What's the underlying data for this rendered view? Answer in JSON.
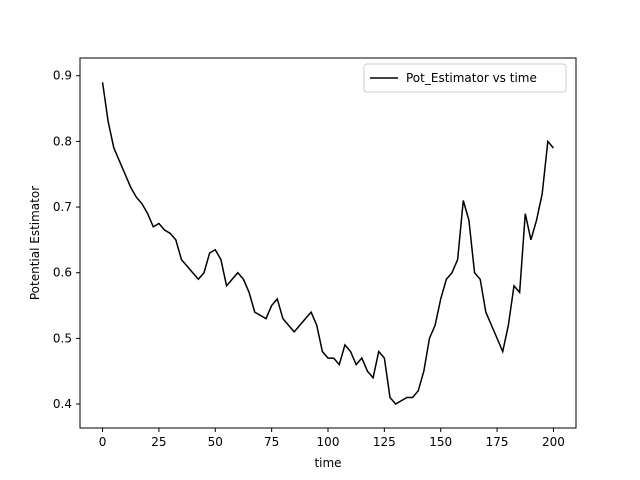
{
  "chart_data": {
    "type": "line",
    "x_label": "time",
    "y_label": "Potential Estimator",
    "x": [
      0,
      2.5,
      5,
      7.5,
      10,
      12.5,
      15,
      17.5,
      20,
      22.5,
      25,
      27.5,
      30,
      32.5,
      35,
      37.5,
      40,
      42.5,
      45,
      47.5,
      50,
      52.5,
      55,
      57.5,
      60,
      62.5,
      65,
      67.5,
      70,
      72.5,
      75,
      77.5,
      80,
      82.5,
      85,
      87.5,
      90,
      92.5,
      95,
      97.5,
      100,
      102.5,
      105,
      107.5,
      110,
      112.5,
      115,
      117.5,
      120,
      122.5,
      125,
      127.5,
      130,
      132.5,
      135,
      137.5,
      140,
      142.5,
      145,
      147.5,
      150,
      152.5,
      155,
      157.5,
      160,
      162.5,
      165,
      167.5,
      170,
      172.5,
      175,
      177.5,
      180,
      182.5,
      185,
      187.5,
      190,
      192.5,
      195,
      197.5,
      200
    ],
    "series": [
      {
        "name": "Pot_Estimator vs time",
        "color": "#000000",
        "values": [
          0.89,
          0.83,
          0.79,
          0.77,
          0.75,
          0.73,
          0.715,
          0.705,
          0.69,
          0.67,
          0.675,
          0.665,
          0.66,
          0.65,
          0.62,
          0.61,
          0.6,
          0.59,
          0.6,
          0.63,
          0.635,
          0.62,
          0.58,
          0.59,
          0.6,
          0.59,
          0.57,
          0.54,
          0.535,
          0.53,
          0.55,
          0.56,
          0.53,
          0.52,
          0.51,
          0.52,
          0.53,
          0.54,
          0.52,
          0.48,
          0.47,
          0.47,
          0.46,
          0.49,
          0.48,
          0.46,
          0.47,
          0.45,
          0.44,
          0.48,
          0.47,
          0.41,
          0.4,
          0.405,
          0.41,
          0.41,
          0.42,
          0.45,
          0.5,
          0.52,
          0.56,
          0.59,
          0.6,
          0.62,
          0.71,
          0.68,
          0.6,
          0.59,
          0.54,
          0.52,
          0.5,
          0.48,
          0.52,
          0.58,
          0.57,
          0.69,
          0.65,
          0.68,
          0.72,
          0.8,
          0.79
        ]
      }
    ],
    "xlim": [
      -10,
      210
    ],
    "xticks": [
      0,
      25,
      50,
      75,
      100,
      125,
      150,
      175,
      200
    ],
    "ylim": [
      0.3635,
      0.927
    ],
    "yticks": [
      0.4,
      0.5,
      0.6,
      0.7,
      0.8,
      0.9
    ],
    "legend": "upper right",
    "grid": false
  }
}
